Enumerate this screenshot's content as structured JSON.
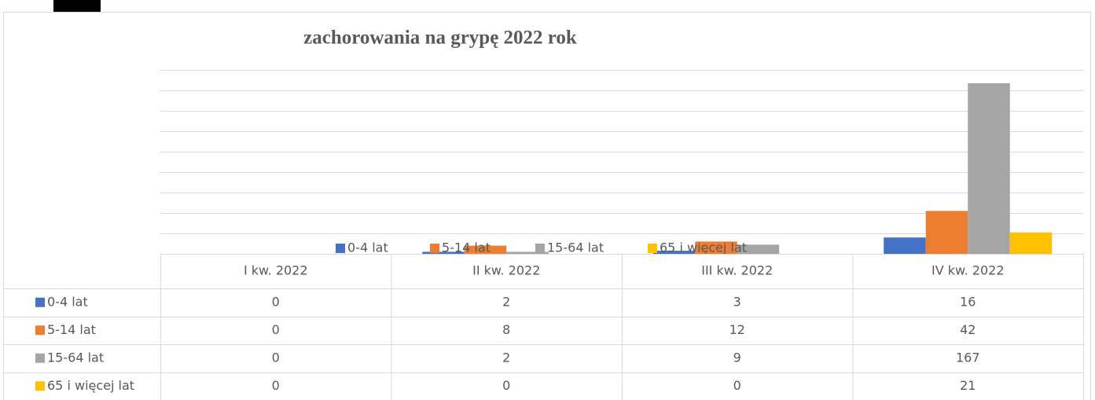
{
  "chart_data": {
    "type": "bar",
    "title": "zachorowania na grypę 2022 rok",
    "categories": [
      "I kw. 2022",
      "II kw. 2022",
      "III kw. 2022",
      "IV kw. 2022"
    ],
    "series": [
      {
        "name": "0-4 lat",
        "color": "#4472c4",
        "values": [
          0,
          2,
          3,
          16
        ]
      },
      {
        "name": "5-14 lat",
        "color": "#ed7d31",
        "values": [
          0,
          8,
          12,
          42
        ]
      },
      {
        "name": "15-64 lat",
        "color": "#a5a5a5",
        "values": [
          0,
          2,
          9,
          167
        ]
      },
      {
        "name": "65 i więcej lat",
        "color": "#ffc000",
        "values": [
          0,
          0,
          0,
          21
        ]
      }
    ],
    "ylim": [
      0,
      180
    ],
    "yticks": [
      0,
      20,
      40,
      60,
      80,
      100,
      120,
      140,
      160,
      180
    ],
    "grid": true,
    "legend": "bottom",
    "data_table": true
  }
}
